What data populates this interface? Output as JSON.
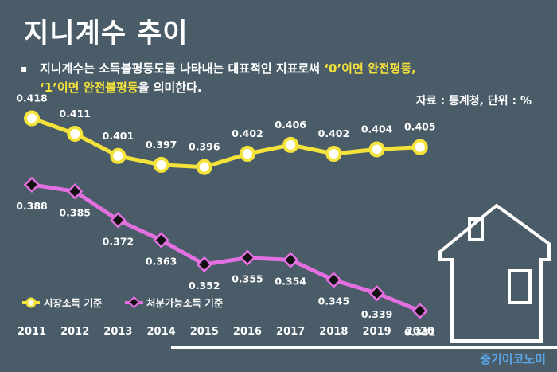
{
  "title": "지니계수 추이",
  "description": {
    "bullet": "▪",
    "part1": "지니계수는 소득불평등도를 나타내는 대표적인 지표로써 ",
    "hl1": "‘0’이면 완전평등,",
    "hl2": "‘1’이면 완전불평등",
    "part2": "을 의미한다."
  },
  "source": "자료 : 통계청, 단위 : %",
  "brand": "중기이코노미",
  "colors": {
    "background": "#4a5c68",
    "market": "#f4e33a",
    "disposable": "#e36fe0",
    "marker_disposable": "#111111"
  },
  "chart_data": {
    "type": "line",
    "x": [
      "2011",
      "2012",
      "2013",
      "2014",
      "2015",
      "2016",
      "2017",
      "2018",
      "2019",
      "2020"
    ],
    "series": [
      {
        "name": "시장소득 기준",
        "values": [
          0.418,
          0.411,
          0.401,
          0.397,
          0.396,
          0.402,
          0.406,
          0.402,
          0.404,
          0.405
        ],
        "labels": [
          "0.418",
          "0.411",
          "0.401",
          "0.397",
          "0.396",
          "0.402",
          "0.406",
          "0.402",
          "0.404",
          "0.405"
        ]
      },
      {
        "name": "처분가능소득 기준",
        "values": [
          0.388,
          0.385,
          0.372,
          0.363,
          0.352,
          0.355,
          0.354,
          0.345,
          0.339,
          0.331
        ],
        "labels": [
          "0.388",
          "0.385",
          "0.372",
          "0.363",
          "0.352",
          "0.355",
          "0.354",
          "0.345",
          "0.339",
          "0.331"
        ]
      }
    ],
    "legend_position": "bottom-left",
    "grid": false
  }
}
